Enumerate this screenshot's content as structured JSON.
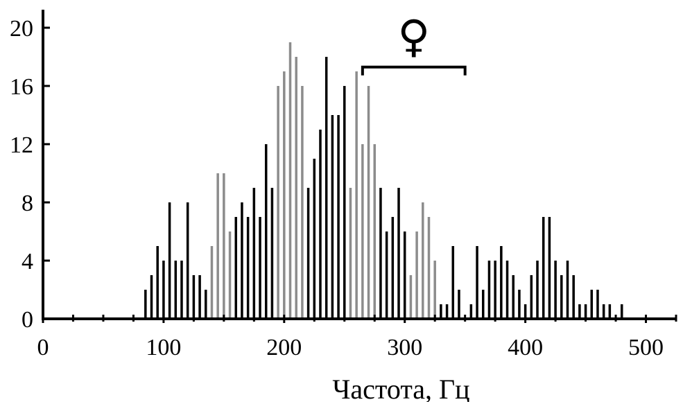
{
  "chart_data": {
    "type": "bar",
    "xlabel": "Частота, Гц",
    "ylabel": "",
    "xlim": [
      0,
      525
    ],
    "ylim": [
      0,
      21
    ],
    "x_ticks": [
      0,
      100,
      200,
      300,
      400,
      500
    ],
    "x_tick_labels": [
      "0",
      "100",
      "200",
      "300",
      "400",
      "500"
    ],
    "y_ticks": [
      0,
      4,
      8,
      12,
      16,
      20
    ],
    "y_tick_labels": [
      "0",
      "4",
      "8",
      "12",
      "16",
      "20"
    ],
    "x_minor_ticks": [
      25,
      50,
      75,
      125,
      150,
      175,
      225,
      250,
      275,
      325,
      350,
      375,
      425,
      450,
      475,
      525
    ],
    "bar_width": 2.0,
    "bars": [
      {
        "x": 85,
        "value": 2,
        "color": "black"
      },
      {
        "x": 90,
        "value": 3,
        "color": "black"
      },
      {
        "x": 95,
        "value": 5,
        "color": "black"
      },
      {
        "x": 100,
        "value": 4,
        "color": "black"
      },
      {
        "x": 105,
        "value": 8,
        "color": "black"
      },
      {
        "x": 110,
        "value": 4,
        "color": "black"
      },
      {
        "x": 115,
        "value": 4,
        "color": "black"
      },
      {
        "x": 120,
        "value": 8,
        "color": "black"
      },
      {
        "x": 125,
        "value": 3,
        "color": "black"
      },
      {
        "x": 130,
        "value": 3,
        "color": "black"
      },
      {
        "x": 135,
        "value": 2,
        "color": "black"
      },
      {
        "x": 140,
        "value": 5,
        "color": "gray"
      },
      {
        "x": 145,
        "value": 10,
        "color": "gray"
      },
      {
        "x": 150,
        "value": 10,
        "color": "gray"
      },
      {
        "x": 155,
        "value": 6,
        "color": "gray"
      },
      {
        "x": 160,
        "value": 7,
        "color": "black"
      },
      {
        "x": 165,
        "value": 8,
        "color": "black"
      },
      {
        "x": 170,
        "value": 7,
        "color": "black"
      },
      {
        "x": 175,
        "value": 9,
        "color": "black"
      },
      {
        "x": 180,
        "value": 7,
        "color": "black"
      },
      {
        "x": 185,
        "value": 12,
        "color": "black"
      },
      {
        "x": 190,
        "value": 9,
        "color": "black"
      },
      {
        "x": 195,
        "value": 16,
        "color": "gray"
      },
      {
        "x": 200,
        "value": 17,
        "color": "gray"
      },
      {
        "x": 205,
        "value": 19,
        "color": "gray"
      },
      {
        "x": 210,
        "value": 18,
        "color": "gray"
      },
      {
        "x": 215,
        "value": 16,
        "color": "gray"
      },
      {
        "x": 220,
        "value": 9,
        "color": "black"
      },
      {
        "x": 225,
        "value": 11,
        "color": "black"
      },
      {
        "x": 230,
        "value": 13,
        "color": "black"
      },
      {
        "x": 235,
        "value": 18,
        "color": "black"
      },
      {
        "x": 240,
        "value": 14,
        "color": "black"
      },
      {
        "x": 245,
        "value": 14,
        "color": "black"
      },
      {
        "x": 250,
        "value": 16,
        "color": "black"
      },
      {
        "x": 255,
        "value": 9,
        "color": "gray"
      },
      {
        "x": 260,
        "value": 17,
        "color": "gray"
      },
      {
        "x": 265,
        "value": 12,
        "color": "gray"
      },
      {
        "x": 270,
        "value": 16,
        "color": "gray"
      },
      {
        "x": 275,
        "value": 12,
        "color": "gray"
      },
      {
        "x": 280,
        "value": 9,
        "color": "black"
      },
      {
        "x": 285,
        "value": 6,
        "color": "black"
      },
      {
        "x": 290,
        "value": 7,
        "color": "black"
      },
      {
        "x": 295,
        "value": 9,
        "color": "black"
      },
      {
        "x": 300,
        "value": 6,
        "color": "black"
      },
      {
        "x": 305,
        "value": 3,
        "color": "gray"
      },
      {
        "x": 310,
        "value": 6,
        "color": "gray"
      },
      {
        "x": 315,
        "value": 8,
        "color": "gray"
      },
      {
        "x": 320,
        "value": 7,
        "color": "gray"
      },
      {
        "x": 325,
        "value": 4,
        "color": "gray"
      },
      {
        "x": 330,
        "value": 1,
        "color": "black"
      },
      {
        "x": 335,
        "value": 1,
        "color": "black"
      },
      {
        "x": 340,
        "value": 5,
        "color": "black"
      },
      {
        "x": 345,
        "value": 2,
        "color": "black"
      },
      {
        "x": 355,
        "value": 1,
        "color": "black"
      },
      {
        "x": 360,
        "value": 5,
        "color": "black"
      },
      {
        "x": 365,
        "value": 2,
        "color": "black"
      },
      {
        "x": 370,
        "value": 4,
        "color": "black"
      },
      {
        "x": 375,
        "value": 4,
        "color": "black"
      },
      {
        "x": 380,
        "value": 5,
        "color": "black"
      },
      {
        "x": 385,
        "value": 4,
        "color": "black"
      },
      {
        "x": 390,
        "value": 3,
        "color": "black"
      },
      {
        "x": 395,
        "value": 2,
        "color": "black"
      },
      {
        "x": 400,
        "value": 1,
        "color": "black"
      },
      {
        "x": 405,
        "value": 3,
        "color": "black"
      },
      {
        "x": 410,
        "value": 4,
        "color": "black"
      },
      {
        "x": 415,
        "value": 7,
        "color": "black"
      },
      {
        "x": 420,
        "value": 7,
        "color": "black"
      },
      {
        "x": 425,
        "value": 4,
        "color": "black"
      },
      {
        "x": 430,
        "value": 3,
        "color": "black"
      },
      {
        "x": 435,
        "value": 4,
        "color": "black"
      },
      {
        "x": 440,
        "value": 3,
        "color": "black"
      },
      {
        "x": 445,
        "value": 1,
        "color": "black"
      },
      {
        "x": 450,
        "value": 1,
        "color": "black"
      },
      {
        "x": 455,
        "value": 2,
        "color": "black"
      },
      {
        "x": 460,
        "value": 2,
        "color": "black"
      },
      {
        "x": 465,
        "value": 1,
        "color": "black"
      },
      {
        "x": 470,
        "value": 1,
        "color": "black"
      },
      {
        "x": 480,
        "value": 1,
        "color": "black"
      }
    ],
    "annotations": [
      {
        "type": "bracket",
        "x_start": 265,
        "x_end": 350,
        "y": 17.3,
        "label": "♀"
      }
    ]
  },
  "colors": {
    "black": "#000000",
    "gray": "#8c8c8c",
    "axis": "#000000"
  },
  "symbol": {
    "icon": "female-sign-icon",
    "glyph": "♀"
  }
}
